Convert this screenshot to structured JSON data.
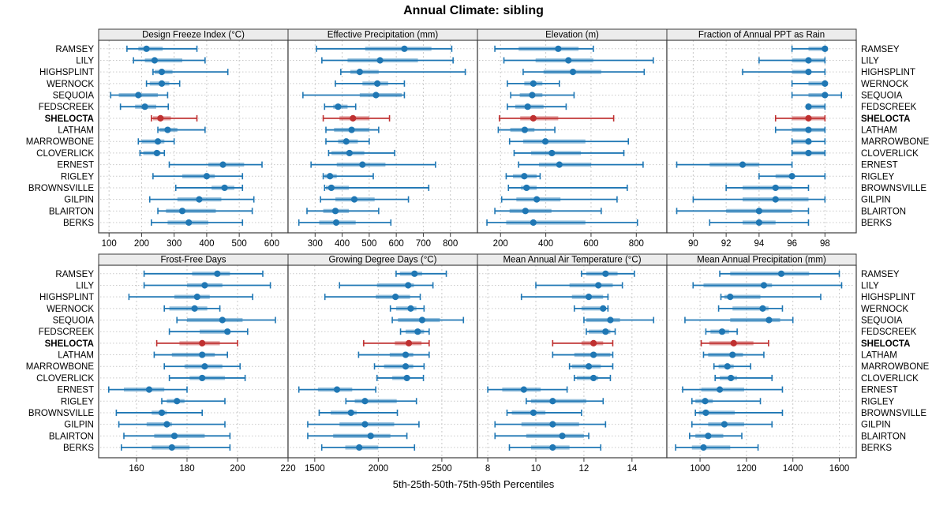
{
  "title": "Annual Climate: sibling",
  "caption": "5th-25th-50th-75th-95th Percentiles",
  "highlight_site": "SHELOCTA",
  "sites": [
    "RAMSEY",
    "LILY",
    "HIGHSPLINT",
    "WERNOCK",
    "SEQUOIA",
    "FEDSCREEK",
    "SHELOCTA",
    "LATHAM",
    "MARROWBONE",
    "CLOVERLICK",
    "ERNEST",
    "RIGLEY",
    "BROWNSVILLE",
    "GILPIN",
    "BLAIRTON",
    "BERKS"
  ],
  "colors": {
    "blue": "#1f77b4",
    "red": "#bf3030",
    "grid": "#c9c9c9",
    "strip_bg": "#ececec",
    "border": "#3c3c3c",
    "text": "#000000"
  },
  "chart_data": {
    "type": "dotplot-percentiles",
    "percentile_labels": [
      "5th",
      "25th",
      "50th",
      "75th",
      "95th"
    ],
    "grid_layout": [
      2,
      4
    ],
    "legend": false,
    "panels": [
      {
        "title": "Design Freeze Index (°C)",
        "ticks": [
          100,
          200,
          300,
          400,
          500,
          600
        ],
        "range": [
          68,
          650
        ],
        "values": [
          [
            155,
            190,
            215,
            265,
            370
          ],
          [
            175,
            210,
            240,
            325,
            395
          ],
          [
            235,
            240,
            262,
            295,
            465
          ],
          [
            215,
            225,
            262,
            285,
            317
          ],
          [
            105,
            130,
            190,
            250,
            280
          ],
          [
            135,
            180,
            210,
            245,
            282
          ],
          [
            230,
            235,
            258,
            290,
            370
          ],
          [
            250,
            255,
            280,
            310,
            395
          ],
          [
            190,
            200,
            250,
            270,
            300
          ],
          [
            195,
            205,
            247,
            258,
            270
          ],
          [
            285,
            405,
            450,
            515,
            570
          ],
          [
            235,
            325,
            400,
            425,
            510
          ],
          [
            305,
            415,
            455,
            485,
            510
          ],
          [
            225,
            310,
            377,
            445,
            545
          ],
          [
            250,
            275,
            325,
            428,
            540
          ],
          [
            230,
            280,
            345,
            405,
            510
          ]
        ]
      },
      {
        "title": "Effective Precipitation (mm)",
        "ticks": [
          300,
          400,
          500,
          600,
          700,
          800
        ],
        "range": [
          200,
          900
        ],
        "values": [
          [
            305,
            485,
            630,
            730,
            805
          ],
          [
            325,
            420,
            540,
            680,
            810
          ],
          [
            395,
            430,
            465,
            535,
            855
          ],
          [
            375,
            475,
            530,
            570,
            630
          ],
          [
            255,
            465,
            525,
            620,
            630
          ],
          [
            335,
            367,
            385,
            420,
            450
          ],
          [
            330,
            390,
            440,
            500,
            575
          ],
          [
            340,
            370,
            435,
            500,
            535
          ],
          [
            340,
            385,
            415,
            458,
            500
          ],
          [
            350,
            360,
            427,
            482,
            594
          ],
          [
            285,
            380,
            475,
            560,
            745
          ],
          [
            330,
            335,
            355,
            380,
            515
          ],
          [
            335,
            340,
            360,
            425,
            720
          ],
          [
            320,
            375,
            445,
            520,
            645
          ],
          [
            270,
            330,
            375,
            425,
            535
          ],
          [
            240,
            315,
            378,
            450,
            580
          ]
        ]
      },
      {
        "title": "Elevation (m)",
        "ticks": [
          200,
          400,
          600,
          800
        ],
        "range": [
          98,
          935
        ],
        "values": [
          [
            175,
            280,
            455,
            545,
            610
          ],
          [
            215,
            355,
            500,
            610,
            875
          ],
          [
            300,
            390,
            520,
            645,
            835
          ],
          [
            230,
            305,
            345,
            385,
            460
          ],
          [
            245,
            285,
            340,
            385,
            525
          ],
          [
            230,
            265,
            320,
            390,
            490
          ],
          [
            195,
            287,
            345,
            455,
            700
          ],
          [
            190,
            243,
            307,
            350,
            440
          ],
          [
            240,
            300,
            398,
            575,
            765
          ],
          [
            260,
            335,
            427,
            555,
            745
          ],
          [
            280,
            370,
            460,
            600,
            830
          ],
          [
            225,
            255,
            305,
            360,
            375
          ],
          [
            235,
            290,
            315,
            360,
            760
          ],
          [
            205,
            270,
            360,
            465,
            715
          ],
          [
            175,
            240,
            310,
            425,
            645
          ],
          [
            140,
            225,
            345,
            575,
            805
          ]
        ]
      },
      {
        "title": "Fraction of Annual PPT as Rain",
        "ticks": [
          90,
          92,
          94,
          96,
          98
        ],
        "range": [
          88.4,
          99.9
        ],
        "values": [
          [
            96,
            97,
            98,
            98,
            98
          ],
          [
            94,
            96,
            97,
            98,
            98
          ],
          [
            93,
            96,
            97,
            97,
            98
          ],
          [
            96,
            97,
            98,
            98,
            98
          ],
          [
            96,
            97,
            98,
            98,
            99
          ],
          [
            97,
            97,
            97,
            98,
            98
          ],
          [
            95,
            96,
            97,
            98,
            98
          ],
          [
            95,
            96,
            97,
            98,
            98
          ],
          [
            96,
            96,
            97,
            97,
            98
          ],
          [
            96,
            96,
            97,
            98,
            98
          ],
          [
            89,
            91,
            93,
            94,
            96
          ],
          [
            94,
            95,
            96,
            96,
            98
          ],
          [
            92,
            93,
            95,
            96,
            97
          ],
          [
            90,
            93,
            95,
            97,
            98
          ],
          [
            89,
            92,
            94,
            96,
            97
          ],
          [
            91,
            93,
            94,
            95,
            97
          ]
        ]
      },
      {
        "title": "Frost-Free Days",
        "ticks": [
          160,
          180,
          200,
          220
        ],
        "range": [
          145,
          220
        ],
        "values": [
          [
            163,
            182,
            192,
            197,
            210
          ],
          [
            163,
            180,
            187,
            194,
            213
          ],
          [
            157,
            175,
            184,
            189,
            206
          ],
          [
            171,
            173,
            183,
            188,
            193
          ],
          [
            176,
            180,
            194,
            202,
            215
          ],
          [
            173,
            185,
            196,
            197,
            204
          ],
          [
            168,
            177,
            186,
            193,
            200
          ],
          [
            167,
            174,
            186,
            191,
            196
          ],
          [
            171,
            179,
            187,
            194,
            201
          ],
          [
            173,
            181,
            186,
            195,
            203
          ],
          [
            149,
            155,
            165,
            171,
            180
          ],
          [
            170,
            172,
            176,
            179,
            195
          ],
          [
            152,
            166,
            170,
            172,
            186
          ],
          [
            153,
            164,
            172,
            174,
            195
          ],
          [
            155,
            167,
            175,
            187,
            197
          ],
          [
            154,
            166,
            174,
            181,
            197
          ]
        ]
      },
      {
        "title": "Growing Degree Days (°C)",
        "ticks": [
          1500,
          2000,
          2500
        ],
        "range": [
          1290,
          2780
        ],
        "values": [
          [
            2140,
            2170,
            2285,
            2345,
            2535
          ],
          [
            1695,
            1990,
            2235,
            2280,
            2430
          ],
          [
            1580,
            1980,
            2135,
            2250,
            2330
          ],
          [
            2095,
            2140,
            2255,
            2300,
            2360
          ],
          [
            2110,
            2155,
            2345,
            2485,
            2670
          ],
          [
            2175,
            2215,
            2310,
            2360,
            2400
          ],
          [
            1885,
            2130,
            2240,
            2340,
            2400
          ],
          [
            1845,
            2090,
            2215,
            2275,
            2400
          ],
          [
            1970,
            2045,
            2215,
            2275,
            2360
          ],
          [
            1990,
            2110,
            2225,
            2240,
            2355
          ],
          [
            1375,
            1525,
            1675,
            1795,
            1980
          ],
          [
            1745,
            1815,
            1895,
            2145,
            2300
          ],
          [
            1535,
            1625,
            1785,
            1830,
            2150
          ],
          [
            1445,
            1695,
            1895,
            2125,
            2320
          ],
          [
            1445,
            1645,
            1940,
            2095,
            2225
          ],
          [
            1555,
            1740,
            1850,
            2000,
            2285
          ]
        ]
      },
      {
        "title": "Mean Annual Air Temperature (°C)",
        "ticks": [
          8,
          10,
          12,
          14
        ],
        "range": [
          7.57,
          15.45
        ],
        "values": [
          [
            11.9,
            12.1,
            12.9,
            13.4,
            14.1
          ],
          [
            10.0,
            11.4,
            12.6,
            13.2,
            13.6
          ],
          [
            9.4,
            11.5,
            12.2,
            12.8,
            13.0
          ],
          [
            11.6,
            11.9,
            12.8,
            12.9,
            13.0
          ],
          [
            12.0,
            12.1,
            13.1,
            13.5,
            14.9
          ],
          [
            12.1,
            12.2,
            12.9,
            13.1,
            13.3
          ],
          [
            10.7,
            11.9,
            12.4,
            12.8,
            13.2
          ],
          [
            10.7,
            11.6,
            12.4,
            13.1,
            13.2
          ],
          [
            11.4,
            11.5,
            12.2,
            12.7,
            13.2
          ],
          [
            11.6,
            11.7,
            12.4,
            12.6,
            13.1
          ],
          [
            8.0,
            8.6,
            9.5,
            10.2,
            11.3
          ],
          [
            9.6,
            9.8,
            10.7,
            12.1,
            12.8
          ],
          [
            8.8,
            9.0,
            9.9,
            10.4,
            11.9
          ],
          [
            8.3,
            9.4,
            10.7,
            11.8,
            12.9
          ],
          [
            8.3,
            9.6,
            11.1,
            12.0,
            12.2
          ],
          [
            8.9,
            9.8,
            10.7,
            11.4,
            12.7
          ]
        ]
      },
      {
        "title": "Mean Annual Precipitation (mm)",
        "ticks": [
          1000,
          1200,
          1400,
          1600
        ],
        "range": [
          857,
          1673
        ],
        "values": [
          [
            1085,
            1130,
            1350,
            1470,
            1600
          ],
          [
            970,
            1015,
            1275,
            1310,
            1610
          ],
          [
            1090,
            1105,
            1130,
            1260,
            1520
          ],
          [
            1080,
            1140,
            1270,
            1295,
            1355
          ],
          [
            935,
            1130,
            1297,
            1345,
            1400
          ],
          [
            1025,
            1045,
            1095,
            1125,
            1160
          ],
          [
            1005,
            1040,
            1145,
            1230,
            1295
          ],
          [
            1015,
            1035,
            1140,
            1185,
            1275
          ],
          [
            1060,
            1080,
            1118,
            1145,
            1218
          ],
          [
            1065,
            1085,
            1133,
            1160,
            1310
          ],
          [
            925,
            1005,
            1085,
            1190,
            1355
          ],
          [
            965,
            980,
            1022,
            1055,
            1260
          ],
          [
            980,
            995,
            1025,
            1150,
            1355
          ],
          [
            965,
            1035,
            1105,
            1190,
            1310
          ],
          [
            955,
            980,
            1035,
            1100,
            1180
          ],
          [
            895,
            965,
            1015,
            1130,
            1250
          ]
        ]
      }
    ]
  }
}
